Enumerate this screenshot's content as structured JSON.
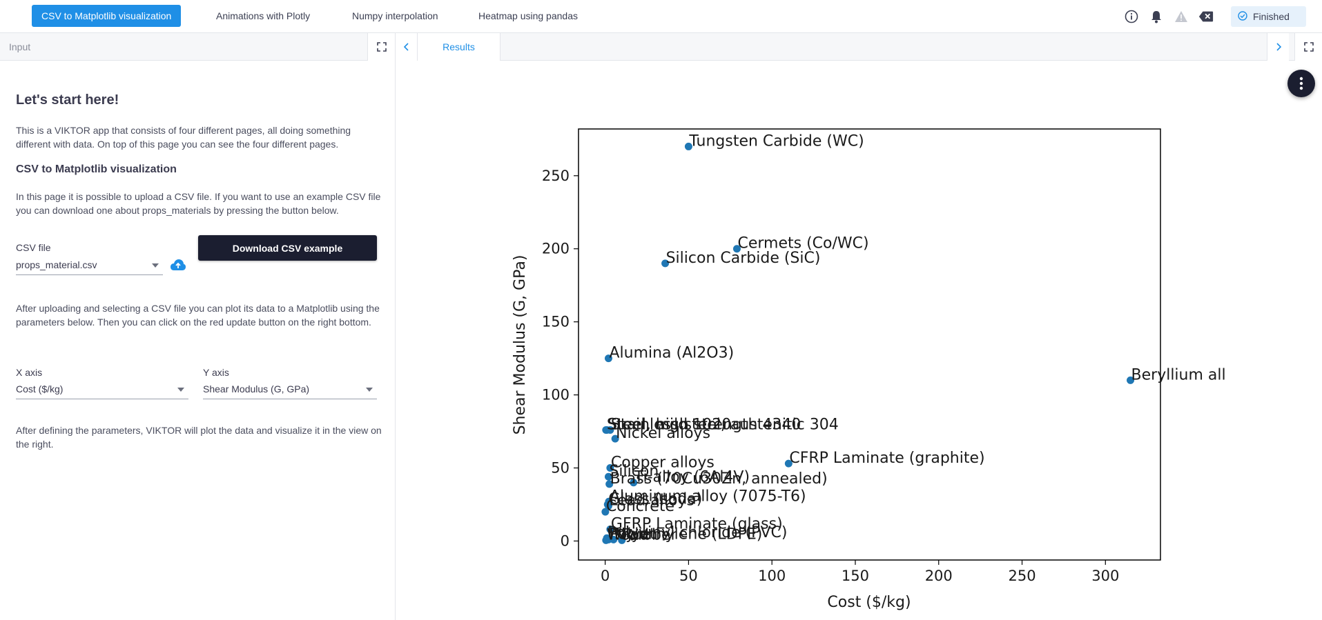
{
  "tabs": [
    {
      "label": "CSV to Matplotlib visualization",
      "active": true
    },
    {
      "label": "Animations with Plotly",
      "active": false
    },
    {
      "label": "Numpy interpolation",
      "active": false
    },
    {
      "label": "Heatmap using pandas",
      "active": false
    }
  ],
  "status": {
    "label": "Finished"
  },
  "icons": [
    "info-icon",
    "bell-icon",
    "warning-icon",
    "backspace-icon",
    "check-circle-icon",
    "expand-icon",
    "chevron-left-icon",
    "chevron-right-icon",
    "more-vertical-icon",
    "cloud-upload-icon"
  ],
  "colors": {
    "accent": "#1f8fe6",
    "dark": "#1b1e30",
    "point": "#1f77b4"
  },
  "input_panel": {
    "title": "Input",
    "heading": "Let's start here!",
    "intro": "This is a VIKTOR app that consists of four different pages, all doing something different with data. On top of this page you can see the four different pages.",
    "section_title": "CSV to Matplotlib visualization",
    "section_text": "In this page it is possible to upload a CSV file. If you want to use an example CSV file you can download one about props_materials by pressing the button below.",
    "csv_label": "CSV file",
    "csv_value": "props_material.csv",
    "download_button": "Download CSV example",
    "plot_text": "After uploading and selecting a CSV file you can plot its data to a Matplotlib using the parameters below. Then you can click on the red update button on the right bottom.",
    "x_label": "X axis",
    "x_value": "Cost ($/kg)",
    "y_label": "Y axis",
    "y_value": "Shear Modulus (G, GPa)",
    "final_text": "After defining the parameters, VIKTOR will plot the data and visualize it in the view on the right."
  },
  "results_panel": {
    "tab": "Results"
  },
  "chart_data": {
    "type": "scatter",
    "xlabel": "Cost ($/kg)",
    "ylabel": "Shear Modulus (G, GPa)",
    "xlim": [
      -16,
      333
    ],
    "ylim": [
      -13,
      282
    ],
    "xticks": [
      0,
      50,
      100,
      150,
      200,
      250,
      300
    ],
    "yticks": [
      0,
      50,
      100,
      150,
      200,
      250
    ],
    "grid": false,
    "points": [
      {
        "x": 50,
        "y": 270,
        "label": "Tungsten Carbide (WC)"
      },
      {
        "x": 79,
        "y": 200,
        "label": "Cermets (Co/WC)"
      },
      {
        "x": 36,
        "y": 190,
        "label": "Silicon Carbide (SiC)"
      },
      {
        "x": 2,
        "y": 125,
        "label": "Alumina (Al2O3)"
      },
      {
        "x": 315,
        "y": 110,
        "label": "Beryllium all"
      },
      {
        "x": 0.5,
        "y": 76,
        "label": "Steel, mild 1020"
      },
      {
        "x": 1,
        "y": 76,
        "label": "Steel, high strength 4340"
      },
      {
        "x": 3,
        "y": 76,
        "label": "Stainless steel, austenitic 304"
      },
      {
        "x": 6,
        "y": 70,
        "label": "Nickel alloys"
      },
      {
        "x": 110,
        "y": 53,
        "label": "CFRP Laminate (graphite)"
      },
      {
        "x": 3,
        "y": 50,
        "label": "Copper alloys"
      },
      {
        "x": 2,
        "y": 44,
        "label": "Silicon"
      },
      {
        "x": 2.5,
        "y": 39,
        "label": "Brass (70Cu30Zn, annealed)"
      },
      {
        "x": 17,
        "y": 40,
        "label": "Ti-alloy (6Al4V)"
      },
      {
        "x": 2.2,
        "y": 27,
        "label": "Aluminum alloy (7075-T6)"
      },
      {
        "x": 1.5,
        "y": 25,
        "label": "Glass (soda)"
      },
      {
        "x": 2,
        "y": 24,
        "label": "Lead alloys"
      },
      {
        "x": 0.1,
        "y": 20,
        "label": "Concrete"
      },
      {
        "x": 3,
        "y": 8,
        "label": "GFRP Laminate (glass)"
      },
      {
        "x": 1,
        "y": 2,
        "label": "Polyvinyl chloride (PVC)"
      },
      {
        "x": 2,
        "y": 1,
        "label": "Polyethylene (LDPE)"
      },
      {
        "x": 5,
        "y": 1,
        "label": "Nylon"
      },
      {
        "x": 10,
        "y": 0.5,
        "label": "Rubber"
      },
      {
        "x": 0.5,
        "y": 0.5,
        "label": "Wood"
      }
    ]
  }
}
